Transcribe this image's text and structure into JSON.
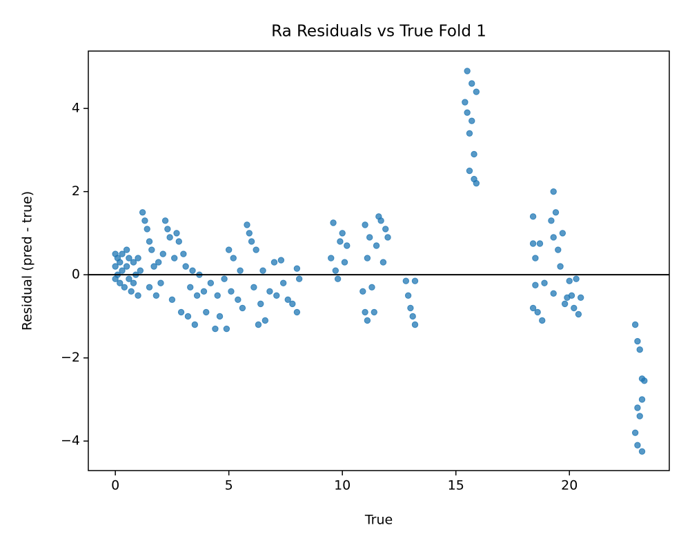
{
  "chart_data": {
    "type": "scatter",
    "title": "Ra Residuals vs True Fold 1",
    "x_label": "True",
    "y_label": "Residual (pred - true)",
    "xlim": [
      -1.19,
      24.4
    ],
    "ylim": [
      -4.71,
      5.38
    ],
    "xticks": [
      0,
      5,
      10,
      15,
      20
    ],
    "yticks": [
      {
        "value": -4,
        "label": "−4"
      },
      {
        "value": -2,
        "label": "−2"
      },
      0,
      2,
      4
    ],
    "hline": 0,
    "grid": false,
    "series": [
      {
        "color": "#1f77b4",
        "x": [
          0,
          0,
          0,
          0.1,
          0.1,
          0.2,
          0.2,
          0.3,
          0.3,
          0.4,
          0.5,
          0.5,
          0.6,
          0.6,
          0.7,
          0.8,
          0.8,
          0.9,
          1.0,
          1.0,
          1.1,
          1.2,
          1.3,
          1.4,
          1.5,
          1.5,
          1.6,
          1.7,
          1.8,
          1.9,
          2.0,
          2.1,
          2.2,
          2.3,
          2.4,
          2.5,
          2.6,
          2.7,
          2.8,
          2.9,
          3.0,
          3.1,
          3.2,
          3.3,
          3.4,
          3.5,
          3.6,
          3.7,
          3.9,
          4.0,
          4.2,
          4.4,
          4.5,
          4.6,
          4.8,
          4.9,
          5.0,
          5.1,
          5.2,
          5.4,
          5.5,
          5.6,
          5.8,
          5.9,
          6.0,
          6.1,
          6.2,
          6.3,
          6.4,
          6.5,
          6.6,
          6.8,
          7.0,
          7.1,
          7.3,
          7.4,
          7.6,
          7.8,
          8.0,
          8.0,
          8.1,
          9.5,
          9.6,
          9.7,
          9.8,
          9.9,
          10.0,
          10.1,
          10.2,
          10.9,
          11.0,
          11.0,
          11.1,
          11.1,
          11.2,
          11.3,
          11.4,
          11.5,
          11.6,
          11.7,
          11.8,
          11.9,
          12.0,
          12.8,
          12.9,
          13.0,
          13.1,
          13.2,
          13.2,
          15.4,
          15.5,
          15.5,
          15.6,
          15.6,
          15.7,
          15.7,
          15.8,
          15.8,
          15.9,
          15.9,
          18.4,
          18.4,
          18.4,
          18.5,
          18.5,
          18.6,
          18.7,
          18.8,
          18.9,
          19.2,
          19.3,
          19.3,
          19.3,
          19.4,
          19.5,
          19.6,
          19.7,
          19.8,
          19.9,
          20.0,
          20.1,
          20.2,
          20.3,
          20.4,
          20.5,
          22.9,
          22.9,
          23.0,
          23.0,
          23.0,
          23.1,
          23.1,
          23.2,
          23.2,
          23.2,
          23.3
        ],
        "values": [
          0.5,
          0.2,
          -0.1,
          0.4,
          0,
          0.3,
          -0.2,
          0.5,
          0.1,
          -0.3,
          0.6,
          0.2,
          -0.1,
          0.4,
          -0.4,
          0.3,
          -0.2,
          0,
          -0.5,
          0.4,
          0.1,
          1.5,
          1.3,
          1.1,
          0.8,
          -0.3,
          0.6,
          0.2,
          -0.5,
          0.3,
          -0.2,
          0.5,
          1.3,
          1.1,
          0.9,
          -0.6,
          0.4,
          1.0,
          0.8,
          -0.9,
          0.5,
          0.2,
          -1.0,
          -0.3,
          0.1,
          -1.2,
          -0.5,
          0.0,
          -0.4,
          -0.9,
          -0.2,
          -1.3,
          -0.5,
          -1.0,
          -0.1,
          -1.3,
          0.6,
          -0.4,
          0.4,
          -0.6,
          0.1,
          -0.8,
          1.2,
          1.0,
          0.8,
          -0.3,
          0.6,
          -1.2,
          -0.7,
          0.1,
          -1.1,
          -0.4,
          0.3,
          -0.5,
          0.35,
          -0.2,
          -0.6,
          -0.7,
          -0.9,
          0.15,
          -0.1,
          0.4,
          1.25,
          0.1,
          -0.1,
          0.8,
          1.0,
          0.3,
          0.7,
          -0.4,
          -0.9,
          1.2,
          0.4,
          -1.1,
          0.9,
          -0.3,
          -0.9,
          0.7,
          1.4,
          1.3,
          0.3,
          1.1,
          0.9,
          -0.15,
          -0.5,
          -0.8,
          -1.0,
          -1.2,
          -0.15,
          4.15,
          4.9,
          3.9,
          3.4,
          2.5,
          4.6,
          3.7,
          2.9,
          2.3,
          4.4,
          2.2,
          1.4,
          0.75,
          -0.8,
          0.4,
          -0.25,
          -0.9,
          0.75,
          -1.1,
          -0.2,
          1.3,
          2.0,
          0.9,
          -0.45,
          1.5,
          0.6,
          0.2,
          1.0,
          -0.7,
          -0.55,
          -0.15,
          -0.5,
          -0.8,
          -0.1,
          -0.95,
          -0.55,
          -1.2,
          -3.8,
          -1.6,
          -4.1,
          -3.2,
          -1.8,
          -3.4,
          -2.5,
          -3.0,
          -4.25,
          -2.55
        ]
      }
    ]
  }
}
